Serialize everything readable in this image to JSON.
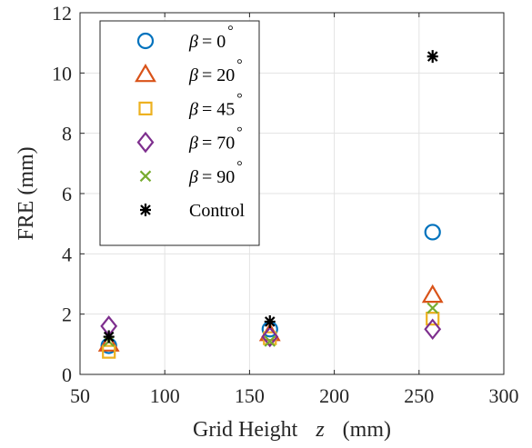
{
  "chart_data": {
    "type": "scatter",
    "xlabel": "Grid Height",
    "xlabel_symbol": "z",
    "xlabel_unit": "(mm)",
    "ylabel": "FRE (mm)",
    "xlim": [
      50,
      300
    ],
    "ylim": [
      0,
      12
    ],
    "xticks": [
      50,
      100,
      150,
      200,
      250,
      300
    ],
    "yticks": [
      0,
      2,
      4,
      6,
      8,
      10,
      12
    ],
    "grid": true,
    "legend_position": "top-left",
    "series": [
      {
        "name": "β = 0°",
        "symbol": "β",
        "value_text": "= 0",
        "degree": "°",
        "marker": "circle",
        "color": "#0072BD",
        "x": [
          67,
          162,
          258
        ],
        "y": [
          0.95,
          1.5,
          4.72
        ]
      },
      {
        "name": "β = 20°",
        "symbol": "β",
        "value_text": "= 20",
        "degree": "°",
        "marker": "triangle",
        "color": "#D95319",
        "x": [
          67,
          162,
          258
        ],
        "y": [
          1.0,
          1.35,
          2.62
        ]
      },
      {
        "name": "β = 45°",
        "symbol": "β",
        "value_text": "= 45",
        "degree": "°",
        "marker": "square",
        "color": "#EDB120",
        "x": [
          67,
          162,
          258
        ],
        "y": [
          0.75,
          1.2,
          1.85
        ]
      },
      {
        "name": "β = 70°",
        "symbol": "β",
        "value_text": "= 70",
        "degree": "°",
        "marker": "diamond",
        "color": "#7E2F8E",
        "x": [
          67,
          162,
          258
        ],
        "y": [
          1.6,
          1.25,
          1.5
        ]
      },
      {
        "name": "β = 90°",
        "symbol": "β",
        "value_text": "= 90",
        "degree": "°",
        "marker": "x",
        "color": "#77AC30",
        "x": [
          67,
          162,
          258
        ],
        "y": [
          1.1,
          1.1,
          2.2
        ]
      },
      {
        "name": "Control",
        "label": "Control",
        "marker": "asterisk",
        "color": "#000000",
        "x": [
          67,
          162,
          258
        ],
        "y": [
          1.25,
          1.75,
          10.55
        ]
      }
    ]
  }
}
